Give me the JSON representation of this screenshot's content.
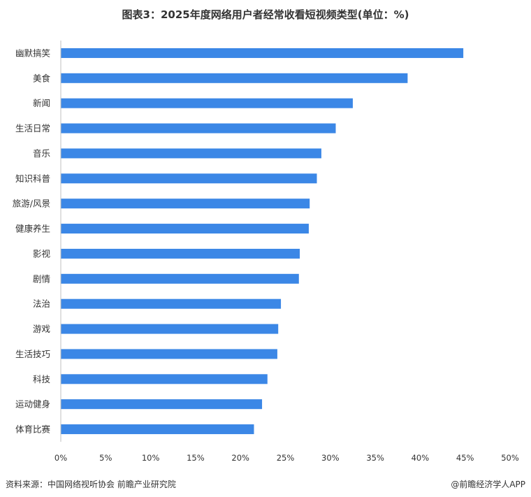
{
  "header": {
    "title": "图表3：2025年度网络用户者经常收看短视频类型(单位：%)"
  },
  "footer": {
    "source": "资料来源：中国网络视听协会 前瞻产业研究院",
    "brand": "@前瞻经济学人APP"
  },
  "colors": {
    "bar": "#3b87e6",
    "axis": "#bfbfbf"
  },
  "chart_data": {
    "type": "bar",
    "orientation": "horizontal",
    "categories": [
      "幽默搞笑",
      "美食",
      "新闻",
      "生活日常",
      "音乐",
      "知识科普",
      "旅游/风景",
      "健康养生",
      "影视",
      "剧情",
      "法治",
      "游戏",
      "生活技巧",
      "科技",
      "运动健身",
      "体育比赛"
    ],
    "values": [
      44.8,
      38.6,
      32.5,
      30.6,
      29.0,
      28.5,
      27.7,
      27.6,
      26.6,
      26.5,
      24.5,
      24.2,
      24.1,
      23.0,
      22.4,
      21.5
    ],
    "xlim": [
      0,
      50
    ],
    "xticks": [
      "0%",
      "5%",
      "10%",
      "15%",
      "20%",
      "25%",
      "30%",
      "35%",
      "40%",
      "45%",
      "50%"
    ],
    "title": "图表3：2025年度网络用户者经常收看短视频类型(单位：%)",
    "xlabel": "",
    "ylabel": "",
    "grid": false
  }
}
